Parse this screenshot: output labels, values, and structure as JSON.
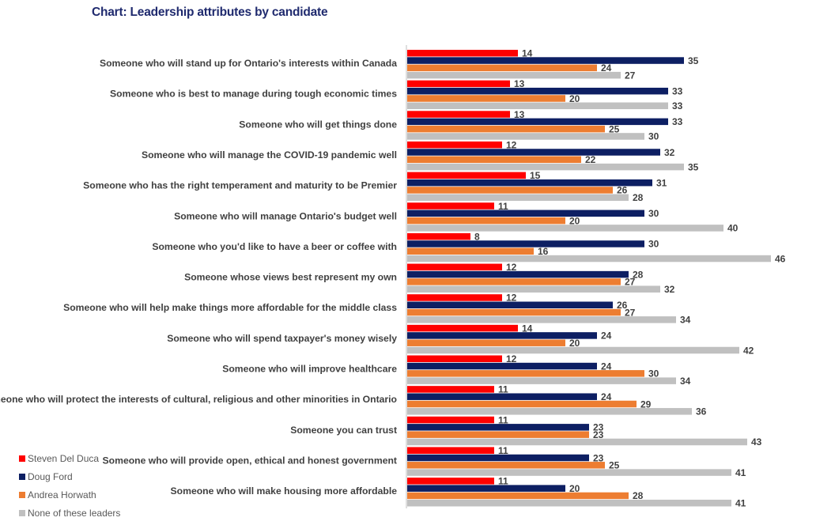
{
  "chart_data": {
    "type": "bar",
    "orientation": "horizontal",
    "title": "Chart: Leadership attributes by candidate",
    "xlabel": "",
    "ylabel": "",
    "xlim": [
      0,
      46
    ],
    "legend_position": "bottom-left",
    "categories": [
      "Someone who will stand up for Ontario's interests within Canada",
      "Someone who is best to manage during tough economic times",
      "Someone who will get things done",
      "Someone who will manage the COVID-19 pandemic well",
      "Someone who has the right temperament and maturity to be Premier",
      "Someone who will manage Ontario's budget well",
      "Someone who you'd like to have a beer or coffee with",
      "Someone whose views best represent my own",
      "Someone who will help make things more affordable for the middle class",
      "Someone who will spend taxpayer's money wisely",
      "Someone who will improve healthcare",
      "Someone who will protect the interests of cultural, religious and other minorities in Ontario",
      "Someone you can trust",
      "Someone who will provide open, ethical and honest government",
      "Someone who will make housing more affordable"
    ],
    "series": [
      {
        "name": "Steven Del Duca",
        "color": "#ff0000",
        "values": [
          14,
          13,
          13,
          12,
          15,
          11,
          8,
          12,
          12,
          14,
          12,
          11,
          11,
          11,
          11
        ]
      },
      {
        "name": "Doug Ford",
        "color": "#0d1f63",
        "values": [
          35,
          33,
          33,
          32,
          31,
          30,
          30,
          28,
          26,
          24,
          24,
          24,
          23,
          23,
          20
        ]
      },
      {
        "name": "Andrea Horwath",
        "color": "#ed7d31",
        "values": [
          24,
          20,
          25,
          22,
          26,
          20,
          16,
          27,
          27,
          20,
          30,
          29,
          23,
          25,
          28
        ]
      },
      {
        "name": "None of these leaders",
        "color": "#c0c0c0",
        "values": [
          27,
          33,
          30,
          35,
          28,
          40,
          46,
          32,
          34,
          42,
          34,
          36,
          43,
          41,
          41
        ]
      }
    ]
  }
}
